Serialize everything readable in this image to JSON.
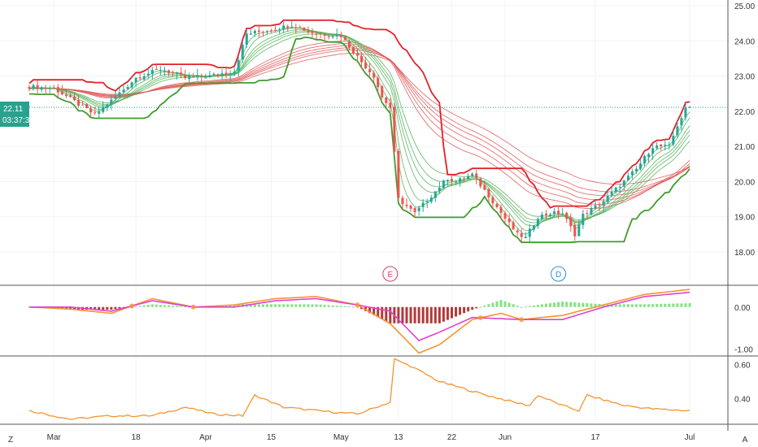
{
  "chart_data": [
    {
      "type": "candlestick",
      "panel": "price",
      "y_ticks": [
        "25.00",
        "24.00",
        "23.00",
        "22.00",
        "21.00",
        "20.00",
        "19.00",
        "18.00"
      ],
      "ylim": [
        17.4,
        25.2
      ],
      "last_price": "22.11",
      "countdown": "03:37:3",
      "annotations": [
        {
          "label": "E",
          "color": "#d2435e",
          "x_index": 88
        },
        {
          "label": "D",
          "color": "#2e8ddb",
          "x_index": 129
        }
      ],
      "candles_anchor_closes": [
        [
          0,
          22.7
        ],
        [
          6,
          22.65
        ],
        [
          12,
          22.2
        ],
        [
          16,
          21.9
        ],
        [
          20,
          22.3
        ],
        [
          26,
          22.95
        ],
        [
          32,
          23.2
        ],
        [
          38,
          22.95
        ],
        [
          44,
          23.0
        ],
        [
          50,
          23.15
        ],
        [
          53,
          24.2
        ],
        [
          58,
          24.3
        ],
        [
          64,
          24.45
        ],
        [
          70,
          24.2
        ],
        [
          76,
          24.15
        ],
        [
          79,
          23.7
        ],
        [
          81,
          23.4
        ],
        [
          84,
          23.0
        ],
        [
          86,
          22.4
        ],
        [
          88,
          22.1
        ],
        [
          90,
          19.5
        ],
        [
          94,
          19.1
        ],
        [
          98,
          19.6
        ],
        [
          102,
          20.1
        ],
        [
          104,
          20.0
        ],
        [
          108,
          20.2
        ],
        [
          112,
          19.6
        ],
        [
          116,
          18.95
        ],
        [
          119,
          18.5
        ],
        [
          121,
          18.4
        ],
        [
          124,
          19.0
        ],
        [
          127,
          19.1
        ],
        [
          130,
          19.1
        ],
        [
          133,
          18.5
        ],
        [
          135,
          19.05
        ],
        [
          140,
          19.45
        ],
        [
          144,
          19.9
        ],
        [
          148,
          20.35
        ],
        [
          152,
          21.0
        ],
        [
          156,
          21.0
        ],
        [
          158,
          21.6
        ],
        [
          160,
          22.05
        ],
        [
          161,
          22.11
        ]
      ],
      "candle_count": 162
    },
    {
      "type": "line",
      "panel": "macd",
      "y_ticks": [
        "0.00",
        "-1.00"
      ],
      "ylim": [
        -1.15,
        0.5
      ],
      "series": [
        {
          "values_anchor": [
            [
              0,
              0.0
            ],
            [
              10,
              -0.05
            ],
            [
              20,
              -0.15
            ],
            [
              30,
              0.2
            ],
            [
              40,
              0.0
            ],
            [
              50,
              0.05
            ],
            [
              60,
              0.2
            ],
            [
              70,
              0.25
            ],
            [
              80,
              0.05
            ],
            [
              88,
              -0.4
            ],
            [
              95,
              -1.1
            ],
            [
              100,
              -0.9
            ],
            [
              108,
              -0.3
            ],
            [
              115,
              -0.15
            ],
            [
              120,
              -0.3
            ],
            [
              130,
              -0.2
            ],
            [
              140,
              0.05
            ],
            [
              150,
              0.3
            ],
            [
              161,
              0.42
            ]
          ],
          "color": "#f7932e"
        },
        {
          "values_anchor": [
            [
              0,
              0.0
            ],
            [
              10,
              0.0
            ],
            [
              20,
              -0.1
            ],
            [
              30,
              0.15
            ],
            [
              40,
              0.0
            ],
            [
              50,
              0.0
            ],
            [
              60,
              0.15
            ],
            [
              70,
              0.2
            ],
            [
              80,
              0.05
            ],
            [
              88,
              -0.1
            ],
            [
              95,
              -0.8
            ],
            [
              100,
              -0.6
            ],
            [
              108,
              -0.25
            ],
            [
              120,
              -0.3
            ],
            [
              130,
              -0.3
            ],
            [
              140,
              0.0
            ],
            [
              150,
              0.25
            ],
            [
              161,
              0.35
            ]
          ],
          "color": "#e040d6"
        }
      ]
    },
    {
      "type": "line",
      "panel": "oscillator",
      "y_ticks": [
        "0.60",
        "0.40"
      ],
      "ylim": [
        0.26,
        0.64
      ],
      "series": [
        {
          "values_anchor": [
            [
              0,
              0.33
            ],
            [
              10,
              0.28
            ],
            [
              20,
              0.3
            ],
            [
              30,
              0.3
            ],
            [
              38,
              0.35
            ],
            [
              45,
              0.31
            ],
            [
              52,
              0.3
            ],
            [
              55,
              0.42
            ],
            [
              62,
              0.35
            ],
            [
              70,
              0.33
            ],
            [
              80,
              0.31
            ],
            [
              88,
              0.38
            ],
            [
              89,
              0.63
            ],
            [
              93,
              0.59
            ],
            [
              100,
              0.5
            ],
            [
              110,
              0.43
            ],
            [
              118,
              0.38
            ],
            [
              122,
              0.36
            ],
            [
              124,
              0.42
            ],
            [
              130,
              0.36
            ],
            [
              134,
              0.33
            ],
            [
              136,
              0.42
            ],
            [
              145,
              0.36
            ],
            [
              152,
              0.34
            ],
            [
              161,
              0.33
            ]
          ],
          "color": "#f7932e"
        }
      ]
    }
  ],
  "x_axis": {
    "labels": [
      {
        "text": "Mar",
        "index": 6
      },
      {
        "text": "18",
        "index": 26
      },
      {
        "text": "Apr",
        "index": 43
      },
      {
        "text": "15",
        "index": 59
      },
      {
        "text": "May",
        "index": 76
      },
      {
        "text": "13",
        "index": 90
      },
      {
        "text": "22",
        "index": 103
      },
      {
        "text": "Jun",
        "index": 116
      },
      {
        "text": "17",
        "index": 138
      },
      {
        "text": "Jul",
        "index": 161
      }
    ]
  },
  "corner_buttons": {
    "left": "Z",
    "right": "A"
  },
  "colors": {
    "up": "#26a69a",
    "down": "#ef5350",
    "guppy_red": "#e25959",
    "guppy_green": "#4caf50",
    "stop_red": "#e2212a",
    "stop_green": "#3e9d2b",
    "macd": "#f7932e",
    "signal": "#e040d6",
    "hist_up": "#7fe57f",
    "hist_down": "#b13a3a",
    "grid": "#f0f3fa",
    "badge": "#2aa18e"
  }
}
